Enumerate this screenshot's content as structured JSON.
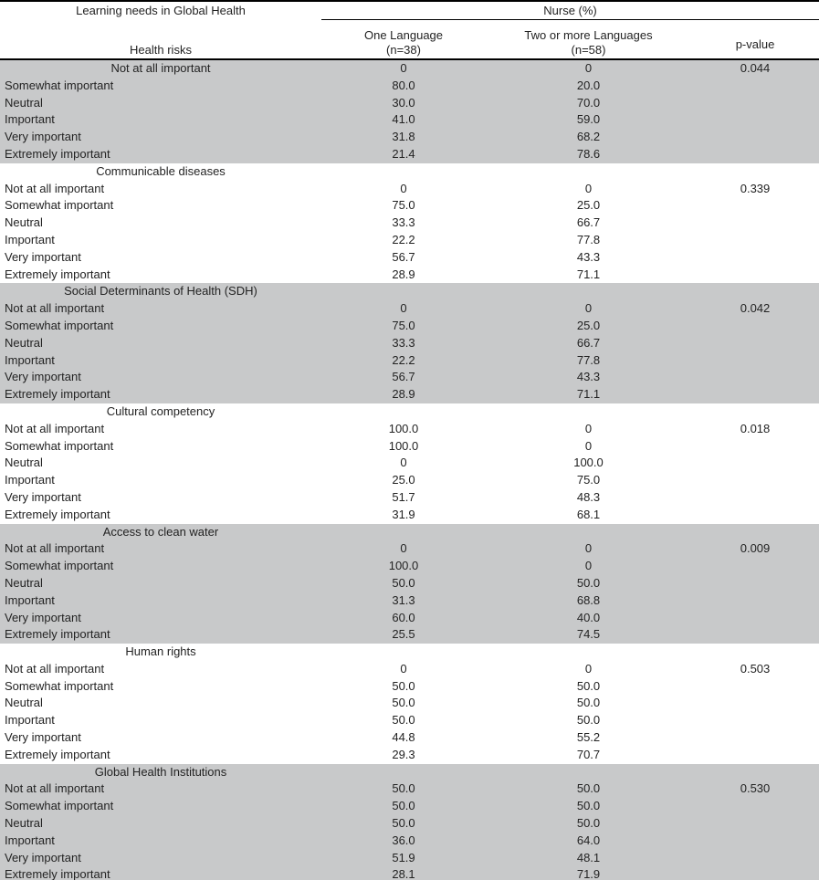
{
  "colors": {
    "section_shade": "#c8c9ca",
    "background": "#ffffff",
    "border": "#000000",
    "text": "#232323"
  },
  "header": {
    "title": "Learning needs in Global Health",
    "subtitle": "Health risks",
    "group_label": "Nurse (%)",
    "col_one_language_line1": "One Language",
    "col_one_language_line2": "(n=38)",
    "col_two_languages_line1": "Two or more Languages",
    "col_two_languages_line2": "(n=58)",
    "col_pvalue": "p-value"
  },
  "sections": [
    {
      "title": "",
      "shaded": true,
      "rows": [
        {
          "label": "Not at all important",
          "label_align": "center",
          "one_language": "0",
          "two_or_more": "0",
          "p_value": "0.044"
        },
        {
          "label": "Somewhat important",
          "one_language": "80.0",
          "two_or_more": "20.0",
          "p_value": ""
        },
        {
          "label": "Neutral",
          "one_language": "30.0",
          "two_or_more": "70.0",
          "p_value": ""
        },
        {
          "label": "Important",
          "one_language": "41.0",
          "two_or_more": "59.0",
          "p_value": ""
        },
        {
          "label": "Very important",
          "one_language": "31.8",
          "two_or_more": "68.2",
          "p_value": ""
        },
        {
          "label": "Extremely important",
          "one_language": "21.4",
          "two_or_more": "78.6",
          "p_value": ""
        }
      ]
    },
    {
      "title": "Communicable diseases",
      "shaded": false,
      "rows": [
        {
          "label": "Not at all important",
          "one_language": "0",
          "two_or_more": "0",
          "p_value": "0.339"
        },
        {
          "label": "Somewhat important",
          "one_language": "75.0",
          "two_or_more": "25.0",
          "p_value": ""
        },
        {
          "label": "Neutral",
          "one_language": "33.3",
          "two_or_more": "66.7",
          "p_value": ""
        },
        {
          "label": "Important",
          "one_language": "22.2",
          "two_or_more": "77.8",
          "p_value": ""
        },
        {
          "label": "Very important",
          "one_language": "56.7",
          "two_or_more": "43.3",
          "p_value": ""
        },
        {
          "label": "Extremely important",
          "one_language": "28.9",
          "two_or_more": "71.1",
          "p_value": ""
        }
      ]
    },
    {
      "title": "Social Determinants of Health (SDH)",
      "shaded": true,
      "rows": [
        {
          "label": "Not at all important",
          "one_language": "0",
          "two_or_more": "0",
          "p_value": "0.042"
        },
        {
          "label": "Somewhat important",
          "one_language": "75.0",
          "two_or_more": "25.0",
          "p_value": ""
        },
        {
          "label": "Neutral",
          "one_language": "33.3",
          "two_or_more": "66.7",
          "p_value": ""
        },
        {
          "label": "Important",
          "one_language": "22.2",
          "two_or_more": "77.8",
          "p_value": ""
        },
        {
          "label": "Very important",
          "one_language": "56.7",
          "two_or_more": "43.3",
          "p_value": ""
        },
        {
          "label": "Extremely important",
          "one_language": "28.9",
          "two_or_more": "71.1",
          "p_value": ""
        }
      ]
    },
    {
      "title": "Cultural competency",
      "shaded": false,
      "rows": [
        {
          "label": "Not at all important",
          "one_language": "100.0",
          "two_or_more": "0",
          "p_value": "0.018"
        },
        {
          "label": "Somewhat important",
          "one_language": "100.0",
          "two_or_more": "0",
          "p_value": ""
        },
        {
          "label": "Neutral",
          "one_language": "0",
          "two_or_more": "100.0",
          "p_value": ""
        },
        {
          "label": "Important",
          "one_language": "25.0",
          "two_or_more": "75.0",
          "p_value": ""
        },
        {
          "label": "Very important",
          "one_language": "51.7",
          "two_or_more": "48.3",
          "p_value": ""
        },
        {
          "label": "Extremely important",
          "one_language": "31.9",
          "two_or_more": "68.1",
          "p_value": ""
        }
      ]
    },
    {
      "title": "Access to clean water",
      "shaded": true,
      "rows": [
        {
          "label": "Not at all important",
          "one_language": "0",
          "two_or_more": "0",
          "p_value": "0.009"
        },
        {
          "label": "Somewhat important",
          "one_language": "100.0",
          "two_or_more": "0",
          "p_value": ""
        },
        {
          "label": "Neutral",
          "one_language": "50.0",
          "two_or_more": "50.0",
          "p_value": ""
        },
        {
          "label": "Important",
          "one_language": "31.3",
          "two_or_more": "68.8",
          "p_value": ""
        },
        {
          "label": "Very important",
          "one_language": "60.0",
          "two_or_more": "40.0",
          "p_value": ""
        },
        {
          "label": "Extremely important",
          "one_language": "25.5",
          "two_or_more": "74.5",
          "p_value": ""
        }
      ]
    },
    {
      "title": "Human rights",
      "shaded": false,
      "rows": [
        {
          "label": "Not at all important",
          "one_language": "0",
          "two_or_more": "0",
          "p_value": "0.503"
        },
        {
          "label": "Somewhat important",
          "one_language": "50.0",
          "two_or_more": "50.0",
          "p_value": ""
        },
        {
          "label": "Neutral",
          "one_language": "50.0",
          "two_or_more": "50.0",
          "p_value": ""
        },
        {
          "label": "Important",
          "one_language": "50.0",
          "two_or_more": "50.0",
          "p_value": ""
        },
        {
          "label": "Very important",
          "one_language": "44.8",
          "two_or_more": "55.2",
          "p_value": ""
        },
        {
          "label": "Extremely important",
          "one_language": "29.3",
          "two_or_more": "70.7",
          "p_value": ""
        }
      ]
    },
    {
      "title": "Global Health Institutions",
      "shaded": true,
      "rows": [
        {
          "label": "Not at all important",
          "one_language": "50.0",
          "two_or_more": "50.0",
          "p_value": "0.530"
        },
        {
          "label": "Somewhat important",
          "one_language": "50.0",
          "two_or_more": "50.0",
          "p_value": ""
        },
        {
          "label": "Neutral",
          "one_language": "50.0",
          "two_or_more": "50.0",
          "p_value": ""
        },
        {
          "label": "Important",
          "one_language": "36.0",
          "two_or_more": "64.0",
          "p_value": ""
        },
        {
          "label": "Very important",
          "one_language": "51.9",
          "two_or_more": "48.1",
          "p_value": ""
        },
        {
          "label": "Extremely important",
          "one_language": "28.1",
          "two_or_more": "71.9",
          "p_value": ""
        }
      ]
    }
  ]
}
